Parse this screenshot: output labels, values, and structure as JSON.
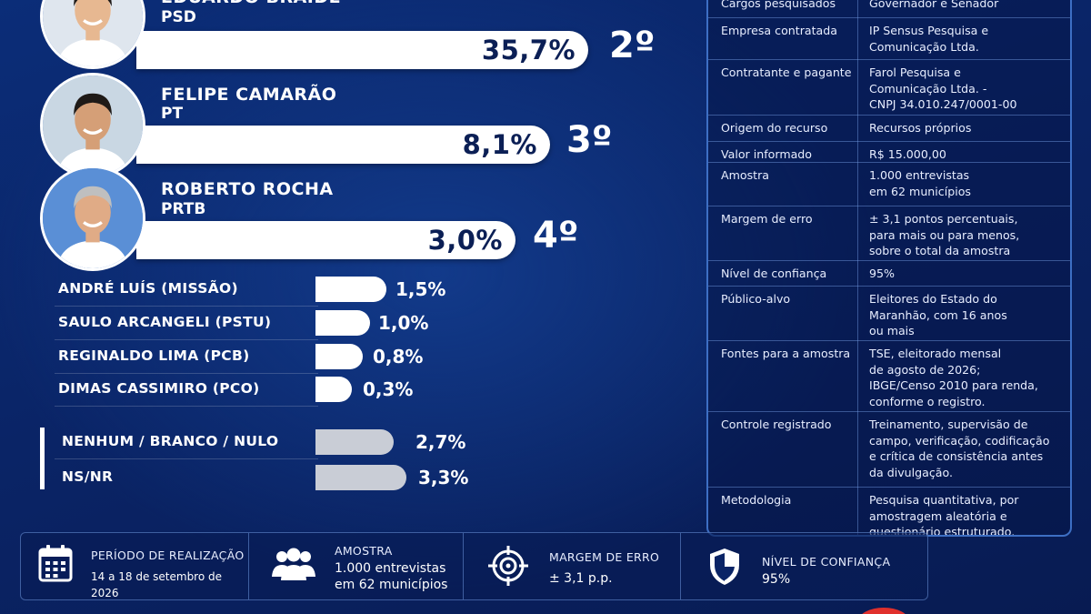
{
  "chart_data": {
    "type": "bar",
    "orientation": "horizontal",
    "main_candidates": [
      {
        "name": "EDUARDO BRAIDE",
        "party": "PSD",
        "value_label": "35,7%",
        "value": 35.7,
        "rank": "2º"
      },
      {
        "name": "FELIPE CAMARÃO",
        "party": "PT",
        "value_label": "8,1%",
        "value": 8.1,
        "rank": "3º"
      },
      {
        "name": "ROBERTO ROCHA",
        "party": "PRTB",
        "value_label": "3,0%",
        "value": 3.0,
        "rank": "4º"
      }
    ],
    "minor_candidates": [
      {
        "label": "ANDRÉ LUÍS (MISSÃO)",
        "value_label": "1,5%",
        "value": 1.5
      },
      {
        "label": "SAULO ARCANGELI (PSTU)",
        "value_label": "1,0%",
        "value": 1.0
      },
      {
        "label": "REGINALDO LIMA (PCB)",
        "value_label": "0,8%",
        "value": 0.8
      },
      {
        "label": "DIMAS CASSIMIRO (PCO)",
        "value_label": "0,3%",
        "value": 0.3
      }
    ],
    "other_responses": [
      {
        "label": "NENHUM / BRANCO / NULO",
        "value_label": "2,7%",
        "value": 2.7
      },
      {
        "label": "NS/NR",
        "value_label": "3,3%",
        "value": 3.3
      }
    ],
    "colors": {
      "main_bar": "#ffffff",
      "other_bar": "#c9cdd6",
      "background": "#0a2466"
    }
  },
  "info_table": [
    {
      "key": "Cargos pesquisados",
      "value": "Governador e Senador"
    },
    {
      "key": "Empresa contratada",
      "value": "IP Sensus Pesquisa e\nComunicação Ltda."
    },
    {
      "key": "Contratante e pagante",
      "value": "Farol Pesquisa e\nComunicação Ltda. -\nCNPJ 34.010.247/0001-00"
    },
    {
      "key": "Origem do recurso",
      "value": "Recursos próprios"
    },
    {
      "key": "Valor informado",
      "value": "R$ 15.000,00"
    },
    {
      "key": "Amostra",
      "value": "1.000 entrevistas\nem 62 municípios"
    },
    {
      "key": "Margem de erro",
      "value": "± 3,1 pontos percentuais,\npara mais ou para menos,\nsobre o total da amostra"
    },
    {
      "key": "Nível de confiança",
      "value": "95%"
    },
    {
      "key": "Público-alvo",
      "value": "Eleitores do Estado do\nMaranhão, com 16 anos\nou mais"
    },
    {
      "key": "Fontes para a amostra",
      "value": "TSE, eleitorado mensal\nde agosto de 2026;\nIBGE/Censo 2010 para renda,\nconforme o registro."
    },
    {
      "key": "Controle registrado",
      "value": "Treinamento, supervisão de\ncampo, verificação, codificação\ne crítica de consistência antes\nda divulgação."
    },
    {
      "key": "Metodologia",
      "value": "Pesquisa quantitativa, por\namostragem aleatória e\nquestionário estruturado."
    }
  ],
  "footer": {
    "period_title": "PERÍODO DE REALIZAÇÃO",
    "period_value": "14 a 18 de setembro de 2026",
    "sample_title": "AMOSTRA",
    "sample_value_1": "1.000 entrevistas",
    "sample_value_2": "em 62 municípios",
    "margin_title": "MARGEM DE ERRO",
    "margin_value": "± 3,1 p.p.",
    "confidence_title": "NÍVEL DE CONFIANÇA",
    "confidence_value": "95%",
    "icons": [
      "calendar-icon",
      "people-icon",
      "target-icon",
      "shield-icon"
    ]
  }
}
